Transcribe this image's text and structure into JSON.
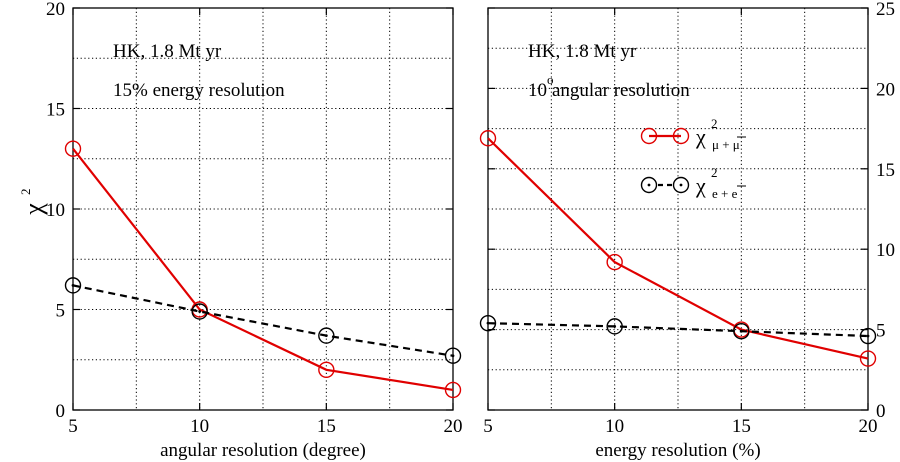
{
  "chart_data": [
    {
      "type": "line",
      "ylabel": "χ",
      "ylabel_sup": "2",
      "xlabel": "angular resolution (degree)",
      "annotations": [
        "HK, 1.8 Mt yr",
        "15% energy resolution"
      ],
      "xlim": [
        5,
        20
      ],
      "ylim": [
        0,
        20
      ],
      "xticks": [
        5,
        10,
        15,
        20
      ],
      "yticks": [
        0,
        5,
        10,
        15,
        20
      ],
      "grid": true,
      "series": [
        {
          "key": "mu",
          "x": [
            5,
            10,
            15,
            20
          ],
          "values": [
            13.0,
            5.0,
            2.0,
            1.0
          ],
          "color": "#e00000",
          "dash": "solid",
          "marker": "circle"
        },
        {
          "key": "e",
          "x": [
            5,
            10,
            15,
            20
          ],
          "values": [
            6.2,
            4.9,
            3.7,
            2.7
          ],
          "color": "#000000",
          "dash": "dashed",
          "marker": "circle-dot"
        }
      ]
    },
    {
      "type": "line",
      "xlabel": "energy resolution (%)",
      "annotations": [
        "HK, 1.8 Mt yr"
      ],
      "annotation2": {
        "prefix": "10",
        "sup": "o",
        "suffix": " angular resolution"
      },
      "xlim": [
        5,
        20
      ],
      "ylim": [
        0,
        25
      ],
      "xticks": [
        5,
        10,
        15,
        20
      ],
      "yticks": [
        0,
        5,
        10,
        15,
        20,
        25
      ],
      "grid": true,
      "legend": {
        "placement": "upper-right",
        "entries": [
          {
            "series_key": "mu",
            "symbol": "χ",
            "sup": "2",
            "sub": "μ + μ",
            "sub_bar_on": "μ"
          },
          {
            "series_key": "e",
            "symbol": "χ",
            "sup": "2",
            "sub": "e + e",
            "sub_bar_on": "e"
          }
        ]
      },
      "series": [
        {
          "key": "mu",
          "x": [
            5,
            10,
            15,
            20
          ],
          "values": [
            16.9,
            9.2,
            5.0,
            3.2
          ],
          "color": "#e00000",
          "dash": "solid",
          "marker": "circle"
        },
        {
          "key": "e",
          "x": [
            5,
            10,
            15,
            20
          ],
          "values": [
            5.4,
            5.2,
            4.9,
            4.6
          ],
          "color": "#000000",
          "dash": "dashed",
          "marker": "circle-dot"
        }
      ]
    }
  ]
}
